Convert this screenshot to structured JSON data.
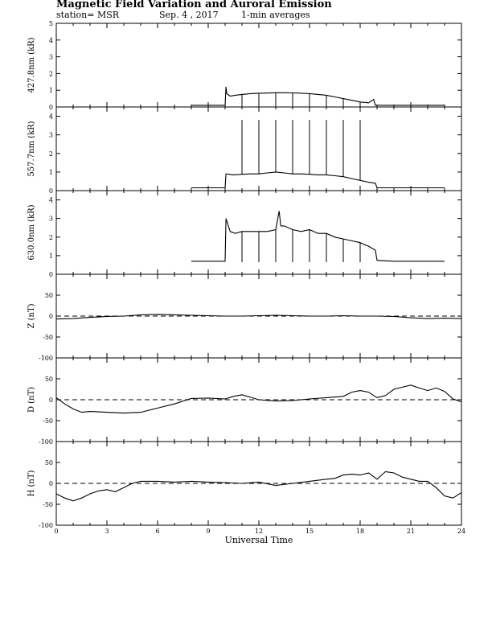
{
  "header": {
    "title": "Magnetic Field Variation and Auroral Emission",
    "station": "station= MSR",
    "date": "Sep. 4 , 2017",
    "averaging": "1-min averages"
  },
  "chart_data": [
    {
      "type": "line",
      "panel": "auroral-427",
      "ylabel": "427.8nm (kR)",
      "ylim": [
        0,
        5
      ],
      "yticks": [
        0,
        1,
        2,
        3,
        4,
        5
      ],
      "xlim": [
        0,
        24
      ],
      "grid": false,
      "series": [
        {
          "x": [
            8.0,
            10.0,
            10.05,
            10.1,
            10.3,
            10.6,
            11.0,
            11.5,
            12.0,
            12.5,
            13.0,
            13.5,
            14.0,
            14.5,
            15.0,
            15.5,
            16.0,
            16.5,
            17.0,
            17.5,
            18.0,
            18.5,
            18.8,
            18.9,
            19.0,
            20.0,
            21.0,
            22.0,
            23.0
          ],
          "values": [
            0.1,
            0.1,
            1.2,
            0.8,
            0.65,
            0.7,
            0.75,
            0.8,
            0.82,
            0.83,
            0.85,
            0.85,
            0.84,
            0.82,
            0.8,
            0.75,
            0.7,
            0.6,
            0.5,
            0.4,
            0.3,
            0.25,
            0.45,
            0.1,
            0.1,
            0.1,
            0.1,
            0.1,
            0.1
          ]
        }
      ],
      "spike_times": [
        11.0,
        12.0,
        13.0,
        14.0,
        15.0,
        16.0,
        17.0,
        18.0
      ],
      "spike_values": [
        0.1,
        0.1,
        0.1,
        0.1,
        0.1,
        0.1,
        0.1,
        0.1
      ]
    },
    {
      "type": "line",
      "panel": "auroral-557",
      "ylabel": "557.7nm (kR)",
      "ylim": [
        0,
        4.5
      ],
      "yticks": [
        0,
        1,
        2,
        3,
        4
      ],
      "xlim": [
        0,
        24
      ],
      "grid": false,
      "series": [
        {
          "x": [
            8.0,
            10.0,
            10.05,
            10.5,
            11.0,
            11.5,
            12.0,
            12.5,
            13.0,
            13.5,
            14.0,
            14.5,
            15.0,
            15.5,
            16.0,
            16.5,
            17.0,
            17.5,
            18.0,
            18.5,
            18.9,
            19.0,
            20.0,
            21.0,
            22.0,
            23.0
          ],
          "values": [
            0.15,
            0.15,
            0.9,
            0.85,
            0.88,
            0.9,
            0.9,
            0.95,
            1.0,
            0.95,
            0.9,
            0.9,
            0.88,
            0.85,
            0.85,
            0.8,
            0.75,
            0.65,
            0.55,
            0.45,
            0.4,
            0.15,
            0.15,
            0.15,
            0.15,
            0.15
          ]
        }
      ],
      "spike_times": [
        11.0,
        12.0,
        13.0,
        14.0,
        15.0,
        16.0,
        17.0,
        18.0
      ],
      "spike_values": [
        3.8,
        3.8,
        3.8,
        3.8,
        3.8,
        3.8,
        3.8,
        3.8
      ]
    },
    {
      "type": "line",
      "panel": "auroral-630",
      "ylabel": "630.0nm (kR)",
      "ylim": [
        0,
        4.5
      ],
      "yticks": [
        0,
        1,
        2,
        3,
        4
      ],
      "xlim": [
        0,
        24
      ],
      "grid": false,
      "series": [
        {
          "x": [
            8.0,
            10.0,
            10.05,
            10.3,
            10.6,
            11.0,
            11.5,
            12.0,
            12.5,
            13.0,
            13.2,
            13.3,
            13.5,
            14.0,
            14.5,
            15.0,
            15.5,
            16.0,
            16.5,
            17.0,
            17.5,
            18.0,
            18.5,
            18.9,
            19.0,
            20.0,
            21.0,
            22.0,
            23.0
          ],
          "values": [
            0.7,
            0.7,
            3.0,
            2.3,
            2.2,
            2.3,
            2.3,
            2.3,
            2.3,
            2.4,
            3.4,
            2.6,
            2.6,
            2.4,
            2.3,
            2.4,
            2.2,
            2.2,
            2.0,
            1.9,
            1.8,
            1.7,
            1.5,
            1.3,
            0.75,
            0.7,
            0.7,
            0.7,
            0.7
          ]
        }
      ],
      "spike_times": [
        11.0,
        12.0,
        13.0,
        14.0,
        15.0,
        16.0,
        17.0,
        18.0
      ],
      "spike_values": [
        0.65,
        0.65,
        0.65,
        0.65,
        0.65,
        0.65,
        0.65,
        0.65
      ]
    },
    {
      "type": "line",
      "panel": "mag-z",
      "ylabel": "Z (nT)",
      "ylim": [
        -100,
        100
      ],
      "yticks": [
        -100,
        -50,
        0,
        50
      ],
      "xlim": [
        0,
        24
      ],
      "grid": false,
      "baseline": 0,
      "series": [
        {
          "x": [
            0,
            1,
            2,
            3,
            4,
            5,
            6,
            7,
            8,
            9,
            10,
            11,
            12,
            13,
            14,
            15,
            16,
            17,
            18,
            19,
            20,
            21,
            22,
            23,
            24
          ],
          "values": [
            -7,
            -6,
            -3,
            -1,
            0,
            3,
            4,
            3,
            2,
            1,
            0,
            0,
            1,
            2,
            1,
            0,
            0,
            1,
            0,
            0,
            -1,
            -4,
            -6,
            -5,
            -6
          ]
        }
      ]
    },
    {
      "type": "line",
      "panel": "mag-d",
      "ylabel": "D (nT)",
      "ylim": [
        -100,
        100
      ],
      "yticks": [
        -100,
        -50,
        0,
        50
      ],
      "xlim": [
        0,
        24
      ],
      "grid": false,
      "baseline": 0,
      "series": [
        {
          "x": [
            0,
            0.5,
            1,
            1.5,
            2,
            3,
            4,
            5,
            6,
            7,
            8,
            9,
            10,
            10.5,
            11,
            12,
            13,
            14,
            15,
            16,
            17,
            17.5,
            18,
            18.5,
            19,
            19.5,
            20,
            20.5,
            21,
            21.5,
            22,
            22.5,
            23,
            23.5,
            24
          ],
          "values": [
            5,
            -10,
            -22,
            -30,
            -28,
            -30,
            -32,
            -30,
            -20,
            -10,
            3,
            4,
            2,
            8,
            12,
            0,
            -3,
            -2,
            2,
            5,
            8,
            18,
            22,
            18,
            5,
            10,
            25,
            30,
            35,
            28,
            22,
            28,
            20,
            2,
            -5
          ]
        }
      ]
    },
    {
      "type": "line",
      "panel": "mag-h",
      "ylabel": "H (nT)",
      "ylim": [
        -100,
        100
      ],
      "yticks": [
        -100,
        -50,
        0,
        50
      ],
      "xlim": [
        0,
        24
      ],
      "grid": false,
      "baseline": 0,
      "xlabel": "Universal Time",
      "xticks": [
        0,
        3,
        6,
        9,
        12,
        15,
        18,
        21,
        24
      ],
      "series": [
        {
          "x": [
            0,
            0.5,
            1,
            1.5,
            2,
            2.5,
            3,
            3.5,
            4,
            4.5,
            5,
            6,
            7,
            8,
            9,
            10,
            11,
            12,
            13,
            14,
            15,
            16,
            16.5,
            17,
            17.5,
            18,
            18.5,
            19,
            19.5,
            20,
            20.5,
            21,
            21.5,
            22,
            22.5,
            23,
            23.5,
            24
          ],
          "values": [
            -25,
            -35,
            -42,
            -35,
            -25,
            -18,
            -15,
            -20,
            -10,
            0,
            5,
            5,
            3,
            5,
            3,
            2,
            0,
            3,
            -5,
            0,
            5,
            10,
            12,
            20,
            22,
            20,
            25,
            10,
            28,
            25,
            15,
            10,
            5,
            5,
            -10,
            -30,
            -35,
            -22
          ]
        }
      ]
    }
  ]
}
